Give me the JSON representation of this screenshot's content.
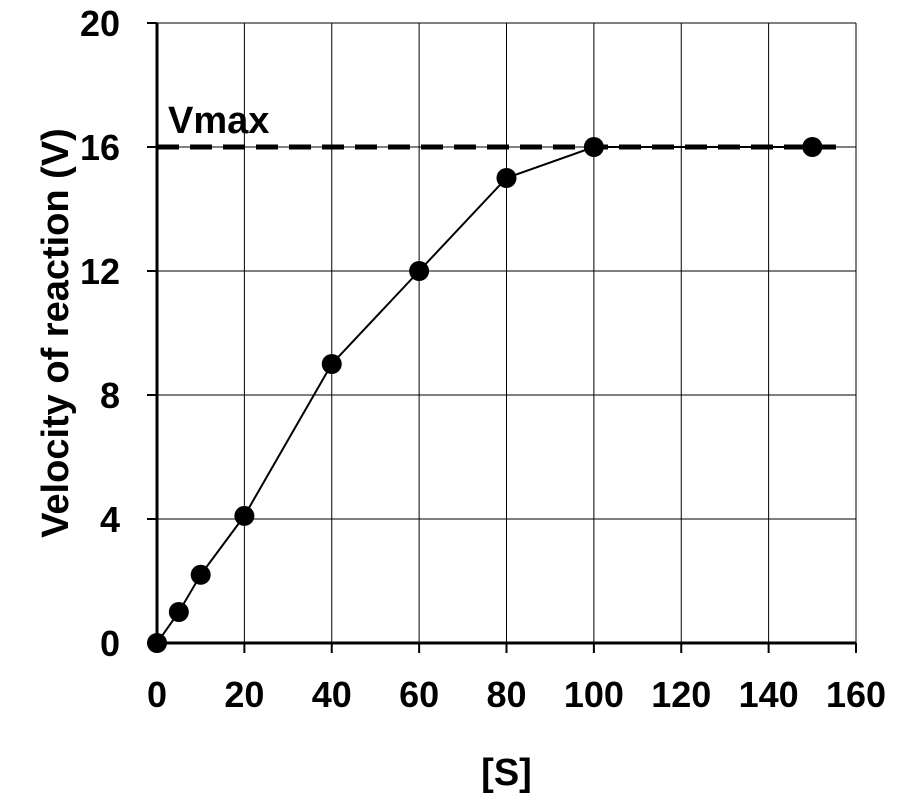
{
  "chart_data": {
    "type": "line",
    "title": "",
    "xlabel": "[S]",
    "ylabel": "Velocity of reaction (V)",
    "xlim": [
      0,
      160
    ],
    "ylim": [
      0,
      20
    ],
    "xticks": [
      0,
      20,
      40,
      60,
      80,
      100,
      120,
      140,
      160
    ],
    "yticks": [
      0,
      4,
      8,
      12,
      16,
      20
    ],
    "grid": true,
    "legend": "none",
    "series": [
      {
        "x": [
          0,
          5,
          10,
          20,
          40,
          60,
          80,
          100,
          150
        ],
        "y": [
          0,
          1,
          2.2,
          4.1,
          9,
          12,
          15,
          16,
          16
        ],
        "color": "#000000",
        "marker": "circle"
      }
    ],
    "annotations": [
      {
        "text": "Vmax",
        "type": "hline",
        "y": 16,
        "style": "dashed"
      }
    ]
  }
}
